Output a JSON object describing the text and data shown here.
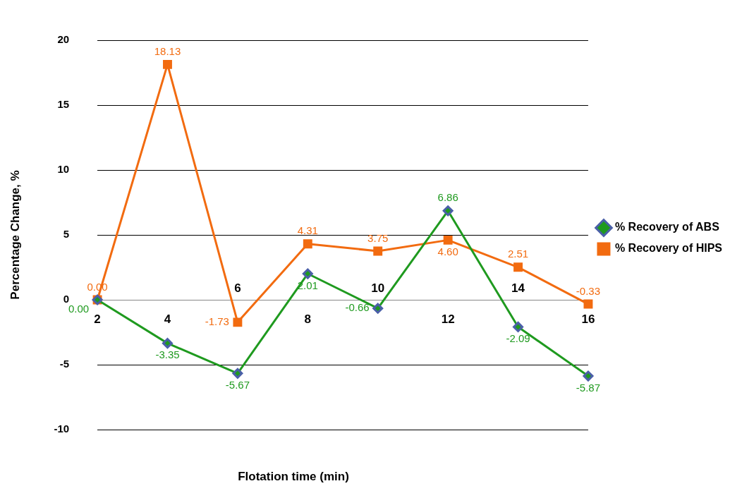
{
  "chart_data": {
    "type": "line",
    "xlabel": "Flotation time (min)",
    "ylabel": "Percentage Change, %",
    "categories": [
      "2",
      "4",
      "6",
      "8",
      "10",
      "12",
      "14",
      "16"
    ],
    "ylim": [
      -10,
      20
    ],
    "yticks": [
      -10,
      -5,
      0,
      5,
      10,
      15,
      20
    ],
    "grid": "y",
    "legend": "right",
    "series": [
      {
        "name": "% Recovery of ABS",
        "color": "#1f9a1f",
        "marker": "diamond",
        "values": [
          0,
          -3.35,
          -5.67,
          2.01,
          -0.66,
          6.86,
          -2.09,
          -5.87
        ],
        "value_labels": [
          "0.00",
          "-3.35",
          "-5.67",
          "2.01",
          "-0.66",
          "6.86",
          "-2.09",
          "-5.87"
        ]
      },
      {
        "name": "% Recovery of HIPS",
        "color": "#f26b10",
        "marker": "square",
        "values": [
          0,
          18.13,
          -1.73,
          4.31,
          3.75,
          4.6,
          2.51,
          -0.33
        ],
        "value_labels": [
          "0.00",
          "18.13",
          "-1.73",
          "4.31",
          "3.75",
          "4.60",
          "2.51",
          "-0.33"
        ]
      }
    ]
  }
}
